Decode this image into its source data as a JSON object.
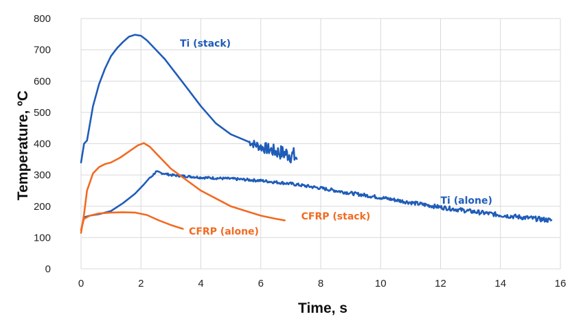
{
  "chart_data": {
    "type": "line",
    "title": "",
    "xlabel": "Time, s",
    "ylabel": "Temperature, ºC",
    "xlim": [
      0,
      16
    ],
    "ylim": [
      0,
      800
    ],
    "xticks": [
      0,
      2,
      4,
      6,
      8,
      10,
      12,
      14,
      16
    ],
    "yticks": [
      0,
      100,
      200,
      300,
      400,
      500,
      600,
      700,
      800
    ],
    "grid": true,
    "legend": "inline labels",
    "colors": {
      "blue": "#1f5cb8",
      "orange": "#f26a21"
    },
    "series": [
      {
        "name": "Ti (stack)",
        "color": "#1f5cb8",
        "label_at": [
          3.3,
          710
        ],
        "noisy_from": 5.6,
        "noise_amp": 30,
        "x": [
          0,
          0.1,
          0.2,
          0.4,
          0.6,
          0.8,
          1.0,
          1.2,
          1.4,
          1.6,
          1.8,
          2.0,
          2.2,
          2.5,
          2.8,
          3.2,
          3.6,
          4.0,
          4.5,
          5.0,
          5.5,
          6.0,
          6.5,
          7.0,
          7.2
        ],
        "y": [
          340,
          400,
          410,
          520,
          590,
          640,
          680,
          705,
          725,
          742,
          748,
          745,
          730,
          700,
          670,
          620,
          570,
          520,
          465,
          430,
          410,
          390,
          375,
          365,
          355
        ]
      },
      {
        "name": "Ti (alone)",
        "color": "#1f5cb8",
        "label_at": [
          12.0,
          208
        ],
        "noisy_from": 2.3,
        "noise_amp": 8,
        "x": [
          0.1,
          0.3,
          0.6,
          1.0,
          1.4,
          1.8,
          2.1,
          2.3,
          2.5,
          3.0,
          4.0,
          5.0,
          6.0,
          7.0,
          8.0,
          9.0,
          10.0,
          11.0,
          12.0,
          13.0,
          14.0,
          15.0,
          15.7
        ],
        "y": [
          165,
          170,
          175,
          185,
          210,
          240,
          270,
          290,
          310,
          300,
          292,
          288,
          282,
          272,
          258,
          242,
          228,
          212,
          197,
          184,
          172,
          162,
          155
        ]
      },
      {
        "name": "CFRP (stack)",
        "color": "#f26a21",
        "label_at": [
          7.35,
          158
        ],
        "noisy_from": 99,
        "noise_amp": 0,
        "x": [
          0,
          0.1,
          0.2,
          0.4,
          0.6,
          0.8,
          1.0,
          1.3,
          1.6,
          1.9,
          2.1,
          2.3,
          2.6,
          3.0,
          3.5,
          4.0,
          4.5,
          5.0,
          5.5,
          6.0,
          6.5,
          6.8
        ],
        "y": [
          115,
          175,
          250,
          305,
          325,
          335,
          340,
          355,
          375,
          395,
          402,
          390,
          360,
          320,
          285,
          250,
          225,
          200,
          185,
          170,
          160,
          155
        ]
      },
      {
        "name": "CFRP (alone)",
        "color": "#f26a21",
        "label_at": [
          3.6,
          110
        ],
        "noisy_from": 99,
        "noise_amp": 0,
        "x": [
          0,
          0.1,
          0.3,
          0.6,
          1.0,
          1.4,
          1.8,
          2.2,
          2.6,
          3.0,
          3.4
        ],
        "y": [
          125,
          160,
          170,
          177,
          180,
          181,
          180,
          172,
          155,
          140,
          128
        ]
      }
    ]
  }
}
